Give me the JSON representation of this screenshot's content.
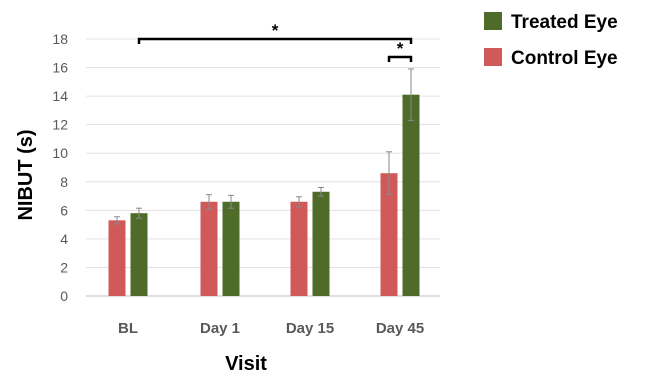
{
  "chart_data": {
    "type": "bar",
    "title": "",
    "xlabel": "Visit",
    "ylabel": "NIBUT (s)",
    "ylim": [
      0,
      18
    ],
    "yticks": [
      0,
      2,
      4,
      6,
      8,
      10,
      12,
      14,
      16,
      18
    ],
    "categories": [
      "BL",
      "Day 1",
      "Day 15",
      "Day 45"
    ],
    "legend_position": "top-right",
    "series": [
      {
        "name": "Control Eye",
        "color": "#d05a5a",
        "values": [
          5.3,
          6.6,
          6.6,
          8.6
        ],
        "errors": [
          0.25,
          0.5,
          0.35,
          1.5
        ]
      },
      {
        "name": "Treated Eye",
        "color": "#4f6b2a",
        "values": [
          5.8,
          6.6,
          7.3,
          14.1
        ],
        "errors": [
          0.35,
          0.45,
          0.3,
          1.8
        ]
      }
    ],
    "legend_order": [
      "Treated Eye",
      "Control Eye"
    ],
    "annotations": [
      {
        "label": "*",
        "from_category": "BL",
        "to_category": "Day 45",
        "from_series": "Treated Eye",
        "to_series": "Treated Eye"
      },
      {
        "label": "*",
        "from_category": "Day 45",
        "to_category": "Day 45",
        "from_series": "Control Eye",
        "to_series": "Treated Eye"
      }
    ]
  }
}
